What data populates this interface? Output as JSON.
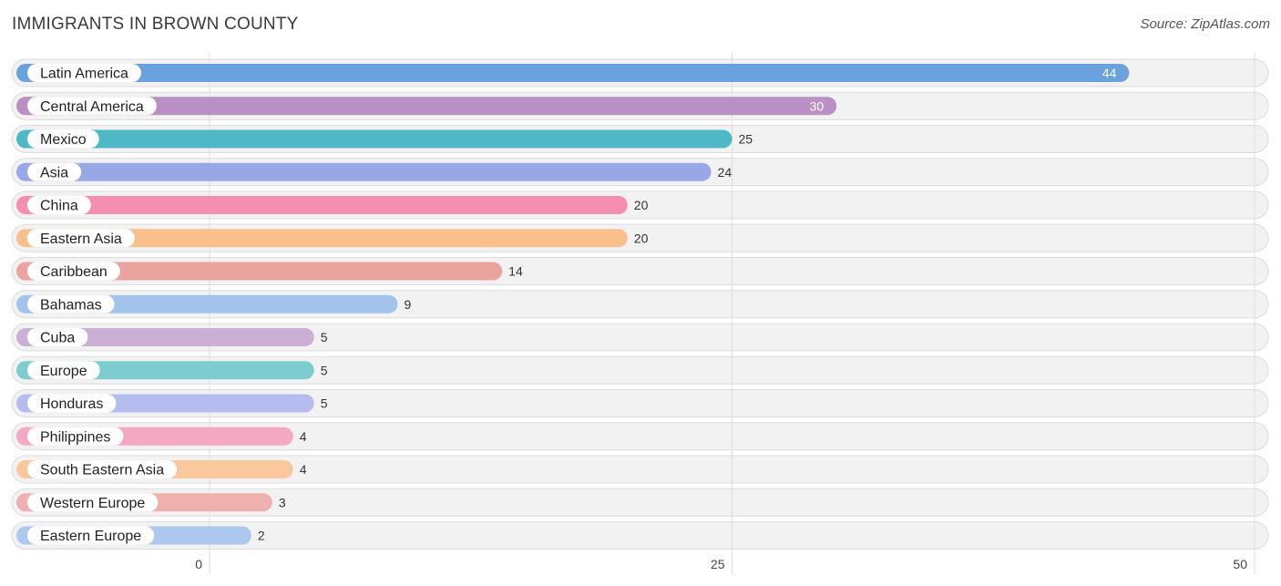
{
  "chart_data": {
    "type": "bar",
    "orientation": "horizontal",
    "title": "IMMIGRANTS IN BROWN COUNTY",
    "source": "Source: ZipAtlas.com",
    "xlim": [
      0,
      50
    ],
    "xticks": [
      0,
      25,
      50
    ],
    "xlabel": "",
    "ylabel": "",
    "grid": true,
    "categories": [
      "Latin America",
      "Central America",
      "Mexico",
      "Asia",
      "China",
      "Eastern Asia",
      "Caribbean",
      "Bahamas",
      "Cuba",
      "Europe",
      "Honduras",
      "Philippines",
      "South Eastern Asia",
      "Western Europe",
      "Eastern Europe"
    ],
    "values": [
      44,
      30,
      25,
      24,
      20,
      20,
      14,
      9,
      5,
      5,
      5,
      4,
      4,
      3,
      2
    ],
    "colors": [
      "#6aa2de",
      "#ba8fc4",
      "#4fb8c6",
      "#9aa7e6",
      "#f48fb1",
      "#f9c08c",
      "#eba39e",
      "#a2c3ea",
      "#ccafd4",
      "#7dccd0",
      "#b5bcee",
      "#f5a8c3",
      "#fbc89e",
      "#f0b1ae",
      "#adc8ee"
    ]
  }
}
